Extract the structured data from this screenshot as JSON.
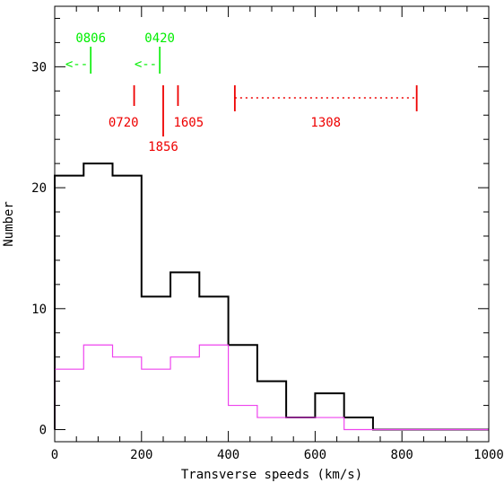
{
  "chart_data": {
    "type": "histogram",
    "xlabel": "Transverse speeds (km/s)",
    "ylabel": "Number",
    "xlim": [
      0,
      1000
    ],
    "ylim": [
      -1,
      35
    ],
    "x_ticks": [
      0,
      200,
      400,
      600,
      800,
      1000
    ],
    "y_ticks": [
      0,
      10,
      20,
      30
    ],
    "bin_edges": [
      0,
      66.7,
      133.3,
      200,
      266.7,
      333.3,
      400,
      466.7,
      533.3,
      600,
      666.7,
      733.3,
      800,
      866.7,
      933.3,
      1000
    ],
    "series": [
      {
        "color": "#000000",
        "values": [
          21,
          22,
          21,
          11,
          13,
          11,
          7,
          4,
          1,
          3,
          1,
          0,
          0,
          0,
          0
        ]
      },
      {
        "color": "#ee44ee",
        "values": [
          5,
          7,
          6,
          5,
          6,
          7,
          2,
          1,
          1,
          1,
          0,
          0,
          0,
          0,
          0
        ]
      }
    ],
    "annotations": [
      {
        "label": "0806",
        "color": "#00ee00",
        "kind": "upper-limit",
        "x": 83,
        "arrow_text": "<--"
      },
      {
        "label": "0420",
        "color": "#00ee00",
        "kind": "upper-limit",
        "x": 242,
        "arrow_text": "<--"
      },
      {
        "label": "0720",
        "color": "#ee0000",
        "kind": "marker",
        "x": 183
      },
      {
        "label": "1856",
        "color": "#ee0000",
        "kind": "marker",
        "x": 250
      },
      {
        "label": "1605",
        "color": "#ee0000",
        "kind": "marker",
        "x": 284
      },
      {
        "label": "1308",
        "color": "#ee0000",
        "kind": "range",
        "x_start": 415,
        "x_end": 834
      }
    ]
  }
}
